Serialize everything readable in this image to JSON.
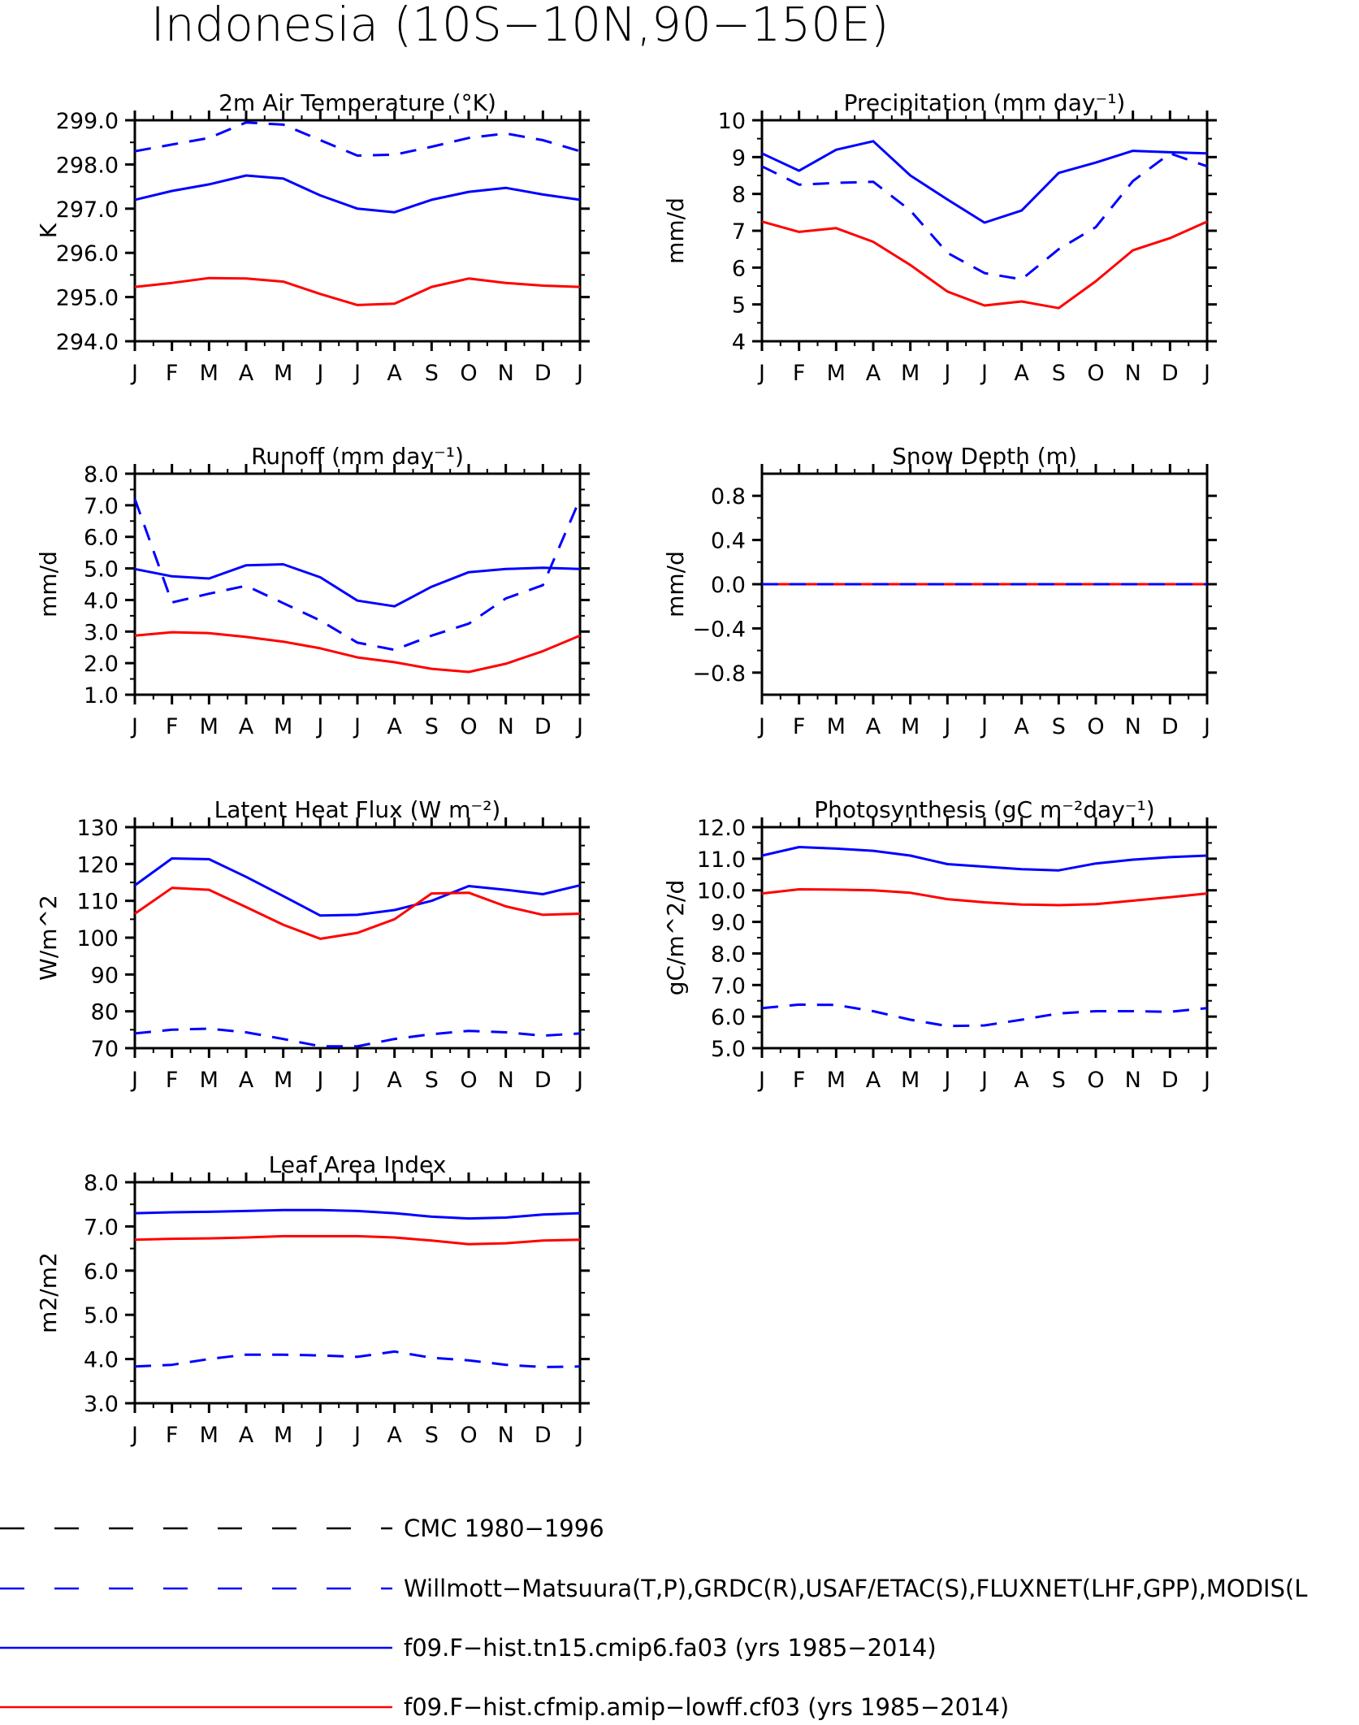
{
  "title": "Indonesia (10S−10N,90−150E)",
  "months": [
    "J",
    "F",
    "M",
    "A",
    "M",
    "J",
    "J",
    "A",
    "S",
    "O",
    "N",
    "D",
    "J"
  ],
  "colors": {
    "obs": "#0000ff",
    "model1": "#0000ff",
    "model2": "#ff0000",
    "cmc": "#000000"
  },
  "legend": [
    {
      "key": "cmc",
      "label": "CMC 1980−1996",
      "color": "#000000",
      "style": "dashed"
    },
    {
      "key": "obs",
      "label": "Willmott−Matsuura(T,P),GRDC(R),USAF/ETAC(S),FLUXNET(LHF,GPP),MODIS(L",
      "color": "#0000ff",
      "style": "dashed"
    },
    {
      "key": "model1",
      "label": "f09.F−hist.tn15.cmip6.fa03 (yrs 1985−2014)",
      "color": "#0000ff",
      "style": "solid"
    },
    {
      "key": "model2",
      "label": "f09.F−hist.cfmip.amip−lowff.cf03 (yrs 1985−2014)",
      "color": "#ff0000",
      "style": "solid"
    }
  ],
  "chart_data": [
    {
      "type": "line",
      "title": "2m Air Temperature (°K)",
      "ylabel": "K",
      "ylim": [
        294,
        299
      ],
      "yticks": [
        294,
        295,
        296,
        297,
        298,
        299
      ],
      "yticklabels": [
        "294.0",
        "295.0",
        "296.0",
        "297.0",
        "298.0",
        "299.0"
      ],
      "x": [
        "J",
        "F",
        "M",
        "A",
        "M",
        "J",
        "J",
        "A",
        "S",
        "O",
        "N",
        "D",
        "J"
      ],
      "series": [
        {
          "key": "obs",
          "values": [
            298.3,
            298.45,
            298.6,
            298.95,
            298.9,
            298.55,
            298.2,
            298.22,
            298.4,
            298.6,
            298.7,
            298.55,
            298.3
          ]
        },
        {
          "key": "model1",
          "values": [
            297.2,
            297.4,
            297.55,
            297.75,
            297.68,
            297.3,
            297.0,
            296.92,
            297.2,
            297.38,
            297.47,
            297.32,
            297.2
          ]
        },
        {
          "key": "model2",
          "values": [
            295.23,
            295.32,
            295.43,
            295.42,
            295.35,
            295.07,
            294.82,
            294.85,
            295.23,
            295.42,
            295.32,
            295.26,
            295.23
          ]
        }
      ]
    },
    {
      "type": "line",
      "title": "Precipitation (mm day⁻¹)",
      "ylabel": "mm/d",
      "ylim": [
        4,
        10
      ],
      "yticks": [
        4,
        5,
        6,
        7,
        8,
        9,
        10
      ],
      "yticklabels": [
        "4",
        "5",
        "6",
        "7",
        "8",
        "9",
        "10"
      ],
      "x": [
        "J",
        "F",
        "M",
        "A",
        "M",
        "J",
        "J",
        "A",
        "S",
        "O",
        "N",
        "D",
        "J"
      ],
      "series": [
        {
          "key": "obs",
          "values": [
            8.75,
            8.25,
            8.3,
            8.33,
            7.55,
            6.4,
            5.85,
            5.68,
            6.5,
            7.1,
            8.35,
            9.1,
            8.75
          ]
        },
        {
          "key": "model1",
          "values": [
            9.1,
            8.63,
            9.2,
            9.43,
            8.5,
            7.85,
            7.22,
            7.55,
            8.57,
            8.85,
            9.17,
            9.13,
            9.1
          ]
        },
        {
          "key": "model2",
          "values": [
            7.25,
            6.97,
            7.07,
            6.7,
            6.07,
            5.35,
            4.97,
            5.08,
            4.9,
            5.63,
            6.47,
            6.8,
            7.25
          ]
        }
      ]
    },
    {
      "type": "line",
      "title": "Runoff (mm day⁻¹)",
      "ylabel": "mm/d",
      "ylim": [
        1,
        8
      ],
      "yticks": [
        1,
        2,
        3,
        4,
        5,
        6,
        7,
        8
      ],
      "yticklabels": [
        "1.0",
        "2.0",
        "3.0",
        "4.0",
        "5.0",
        "6.0",
        "7.0",
        "8.0"
      ],
      "x": [
        "J",
        "F",
        "M",
        "A",
        "M",
        "J",
        "J",
        "A",
        "S",
        "O",
        "N",
        "D",
        "J"
      ],
      "series": [
        {
          "key": "obs",
          "values": [
            7.2,
            3.92,
            4.2,
            4.45,
            3.9,
            3.35,
            2.65,
            2.42,
            2.87,
            3.25,
            4.05,
            4.47,
            7.2
          ]
        },
        {
          "key": "model1",
          "values": [
            4.98,
            4.75,
            4.68,
            5.1,
            5.13,
            4.72,
            3.98,
            3.8,
            4.42,
            4.88,
            4.98,
            5.02,
            4.98
          ]
        },
        {
          "key": "model2",
          "values": [
            2.87,
            2.98,
            2.95,
            2.83,
            2.68,
            2.47,
            2.18,
            2.03,
            1.82,
            1.72,
            1.98,
            2.38,
            2.87
          ]
        }
      ]
    },
    {
      "type": "line",
      "title": "Snow Depth (m)",
      "ylabel": "mm/d",
      "ylim": [
        -1,
        1
      ],
      "yticks": [
        -0.8,
        -0.4,
        0.0,
        0.4,
        0.8
      ],
      "yticklabels": [
        "−0.8",
        "−0.4",
        "0.0",
        "0.4",
        "0.8"
      ],
      "x": [
        "J",
        "F",
        "M",
        "A",
        "M",
        "J",
        "J",
        "A",
        "S",
        "O",
        "N",
        "D",
        "J"
      ],
      "series": [
        {
          "key": "model1",
          "values": [
            0,
            0,
            0,
            0,
            0,
            0,
            0,
            0,
            0,
            0,
            0,
            0,
            0
          ]
        },
        {
          "key": "model2",
          "values": [
            0,
            0,
            0,
            0,
            0,
            0,
            0,
            0,
            0,
            0,
            0,
            0,
            0
          ]
        },
        {
          "key": "cmc",
          "values": [
            0,
            0,
            0,
            0,
            0,
            0,
            0,
            0,
            0,
            0,
            0,
            0,
            0
          ]
        },
        {
          "key": "obs",
          "values": [
            0,
            0,
            0,
            0,
            0,
            0,
            0,
            0,
            0,
            0,
            0,
            0,
            0
          ]
        }
      ]
    },
    {
      "type": "line",
      "title": "Latent Heat Flux (W m⁻²)",
      "ylabel": "W/m^2",
      "ylim": [
        70,
        130
      ],
      "yticks": [
        70,
        80,
        90,
        100,
        110,
        120,
        130
      ],
      "yticklabels": [
        "70",
        "80",
        "90",
        "100",
        "110",
        "120",
        "130"
      ],
      "x": [
        "J",
        "F",
        "M",
        "A",
        "M",
        "J",
        "J",
        "A",
        "S",
        "O",
        "N",
        "D",
        "J"
      ],
      "series": [
        {
          "key": "obs",
          "values": [
            74.0,
            75.0,
            75.3,
            74.3,
            72.5,
            70.5,
            70.5,
            72.5,
            73.8,
            74.7,
            74.3,
            73.4,
            74.0
          ]
        },
        {
          "key": "model1",
          "values": [
            114.2,
            121.5,
            121.3,
            116.5,
            111.3,
            106.0,
            106.2,
            107.5,
            110.0,
            114.0,
            113.0,
            111.8,
            114.2
          ]
        },
        {
          "key": "model2",
          "values": [
            106.5,
            113.5,
            113.0,
            108.3,
            103.5,
            99.7,
            101.3,
            105.0,
            112.0,
            112.2,
            108.5,
            106.2,
            106.5
          ]
        }
      ]
    },
    {
      "type": "line",
      "title": "Photosynthesis (gC m⁻²day⁻¹)",
      "ylabel": "gC/m^2/d",
      "ylim": [
        5,
        12
      ],
      "yticks": [
        5,
        6,
        7,
        8,
        9,
        10,
        11,
        12
      ],
      "yticklabels": [
        "5.0",
        "6.0",
        "7.0",
        "8.0",
        "9.0",
        "10.0",
        "11.0",
        "12.0"
      ],
      "x": [
        "J",
        "F",
        "M",
        "A",
        "M",
        "J",
        "J",
        "A",
        "S",
        "O",
        "N",
        "D",
        "J"
      ],
      "series": [
        {
          "key": "obs",
          "values": [
            6.27,
            6.38,
            6.37,
            6.17,
            5.9,
            5.7,
            5.72,
            5.9,
            6.1,
            6.17,
            6.17,
            6.15,
            6.27
          ]
        },
        {
          "key": "model1",
          "values": [
            11.1,
            11.37,
            11.32,
            11.25,
            11.1,
            10.83,
            10.75,
            10.67,
            10.63,
            10.85,
            10.97,
            11.05,
            11.1
          ]
        },
        {
          "key": "model2",
          "values": [
            9.9,
            10.03,
            10.02,
            10.0,
            9.92,
            9.72,
            9.62,
            9.55,
            9.53,
            9.56,
            9.67,
            9.78,
            9.9
          ]
        }
      ]
    },
    {
      "type": "line",
      "title": "Leaf Area Index",
      "ylabel": "m2/m2",
      "ylim": [
        3,
        8
      ],
      "yticks": [
        3,
        4,
        5,
        6,
        7,
        8
      ],
      "yticklabels": [
        "3.0",
        "4.0",
        "5.0",
        "6.0",
        "7.0",
        "8.0"
      ],
      "x": [
        "J",
        "F",
        "M",
        "A",
        "M",
        "J",
        "J",
        "A",
        "S",
        "O",
        "N",
        "D",
        "J"
      ],
      "series": [
        {
          "key": "obs",
          "values": [
            3.83,
            3.87,
            4.0,
            4.1,
            4.1,
            4.08,
            4.05,
            4.17,
            4.03,
            3.97,
            3.87,
            3.82,
            3.83
          ]
        },
        {
          "key": "model1",
          "values": [
            7.3,
            7.32,
            7.33,
            7.35,
            7.37,
            7.37,
            7.35,
            7.3,
            7.22,
            7.18,
            7.2,
            7.27,
            7.3
          ]
        },
        {
          "key": "model2",
          "values": [
            6.7,
            6.72,
            6.73,
            6.75,
            6.78,
            6.78,
            6.78,
            6.75,
            6.68,
            6.6,
            6.62,
            6.68,
            6.7
          ]
        }
      ]
    }
  ]
}
